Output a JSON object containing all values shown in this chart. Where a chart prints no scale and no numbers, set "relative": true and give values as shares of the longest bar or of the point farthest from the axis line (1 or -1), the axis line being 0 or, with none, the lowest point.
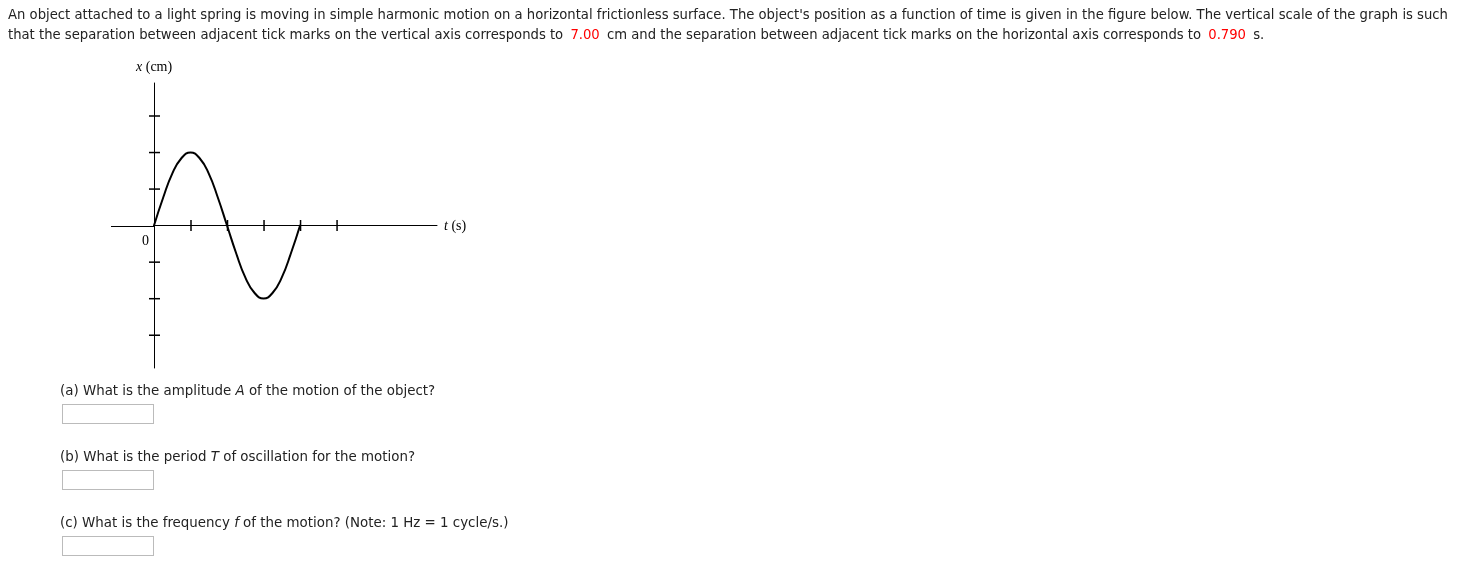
{
  "chart_data": {
    "type": "line",
    "relative": true,
    "title": "An object attached to a light spring is moving in simple harmonic motion on a horizontal frictionless surface. The object's position as a function of time is given in the figure below. The vertical scale of the graph is such that the separation between adjacent tick marks on the vertical axis corresponds to 7.00 cm and the separation between adjacent tick marks on the horizontal axis corresponds to 0.790 s.",
    "xlabel": "t (s)",
    "categories": [
      null,
      null,
      null,
      null,
      null,
      null,
      null,
      null,
      null,
      null,
      null,
      null,
      null,
      null,
      null,
      null,
      null,
      null,
      null,
      null,
      null,
      null,
      null,
      null,
      null,
      null,
      null,
      null,
      null,
      null,
      null,
      null
    ],
    "values": [
      0,
      0.38,
      0.71,
      0.92,
      1,
      0.92,
      0.71,
      0.38,
      0,
      -0.38,
      -0.71,
      -0.92,
      -1,
      -0.92,
      -0.71,
      -0.38,
      0,
      null,
      null,
      null,
      null,
      null,
      null,
      null,
      null,
      null,
      null,
      null,
      null,
      null,
      null,
      null
    ],
    "color": "#000000",
    "marker": "none",
    "line_style": "solid",
    "annotations": [
      "x (cm)",
      "0",
      "(a) What is the amplitude A of the motion of the object?",
      "(b) What is the period T of oscillation for the motion?",
      "(c) What is the frequency f of the motion? (Note: 1 Hz = 1 cycle/s.)"
    ]
  }
}
